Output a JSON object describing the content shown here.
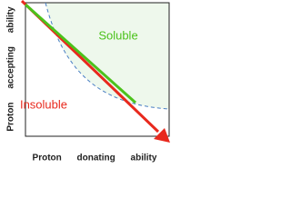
{
  "labels": {
    "soluble": "Soluble",
    "insoluble": "Insoluble"
  },
  "axes": {
    "x_label": "Proton donating ability",
    "y_label": "Proton accepting ability"
  }
}
